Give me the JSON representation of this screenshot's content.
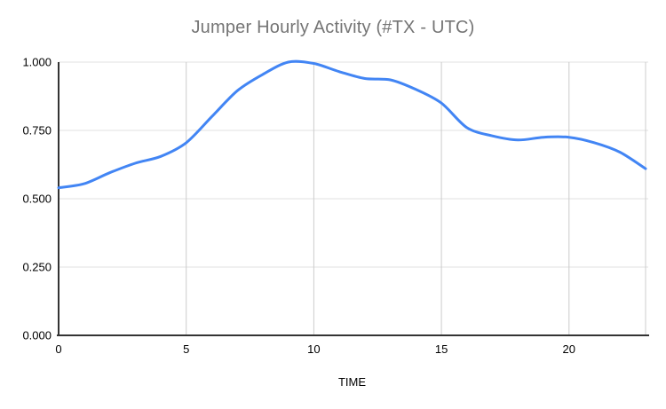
{
  "chart_data": {
    "type": "line",
    "title": "Jumper Hourly Activity (#TX - UTC)",
    "xlabel": "TIME",
    "ylabel": "",
    "x": [
      0,
      1,
      2,
      3,
      4,
      5,
      6,
      7,
      8,
      9,
      10,
      11,
      12,
      13,
      14,
      15,
      16,
      17,
      18,
      19,
      20,
      21,
      22,
      23
    ],
    "values": [
      0.54,
      0.555,
      0.595,
      0.63,
      0.655,
      0.705,
      0.8,
      0.895,
      0.955,
      1.0,
      0.995,
      0.965,
      0.94,
      0.935,
      0.9,
      0.85,
      0.76,
      0.73,
      0.715,
      0.725,
      0.725,
      0.705,
      0.67,
      0.61
    ],
    "series_name": "#TX",
    "smooth": true,
    "xlim": [
      0,
      23
    ],
    "ylim": [
      0,
      1
    ],
    "x_ticks": [
      {
        "value": 0,
        "label": "0"
      },
      {
        "value": 5,
        "label": "5"
      },
      {
        "value": 10,
        "label": "10"
      },
      {
        "value": 15,
        "label": "15"
      },
      {
        "value": 20,
        "label": "20"
      }
    ],
    "x_gridlines": [
      5,
      10,
      15,
      20,
      23
    ],
    "y_ticks": [
      {
        "value": 0,
        "label": "0.000"
      },
      {
        "value": 0.25,
        "label": "0.250"
      },
      {
        "value": 0.5,
        "label": "0.500"
      },
      {
        "value": 0.75,
        "label": "0.750"
      },
      {
        "value": 1.0,
        "label": "1.000"
      }
    ],
    "y_gridlines": [
      0.25,
      0.5,
      0.75,
      1.0
    ],
    "grid_on": true,
    "legend_position": "none",
    "colors": {
      "line": "#4285f4",
      "h_gridline": "#e0e0e0",
      "v_gridline": "#cccccc",
      "axis": "#333333",
      "title_text": "#757575",
      "tick_text": "#000000",
      "axis_title_text": "#000000",
      "background": "#ffffff"
    }
  }
}
